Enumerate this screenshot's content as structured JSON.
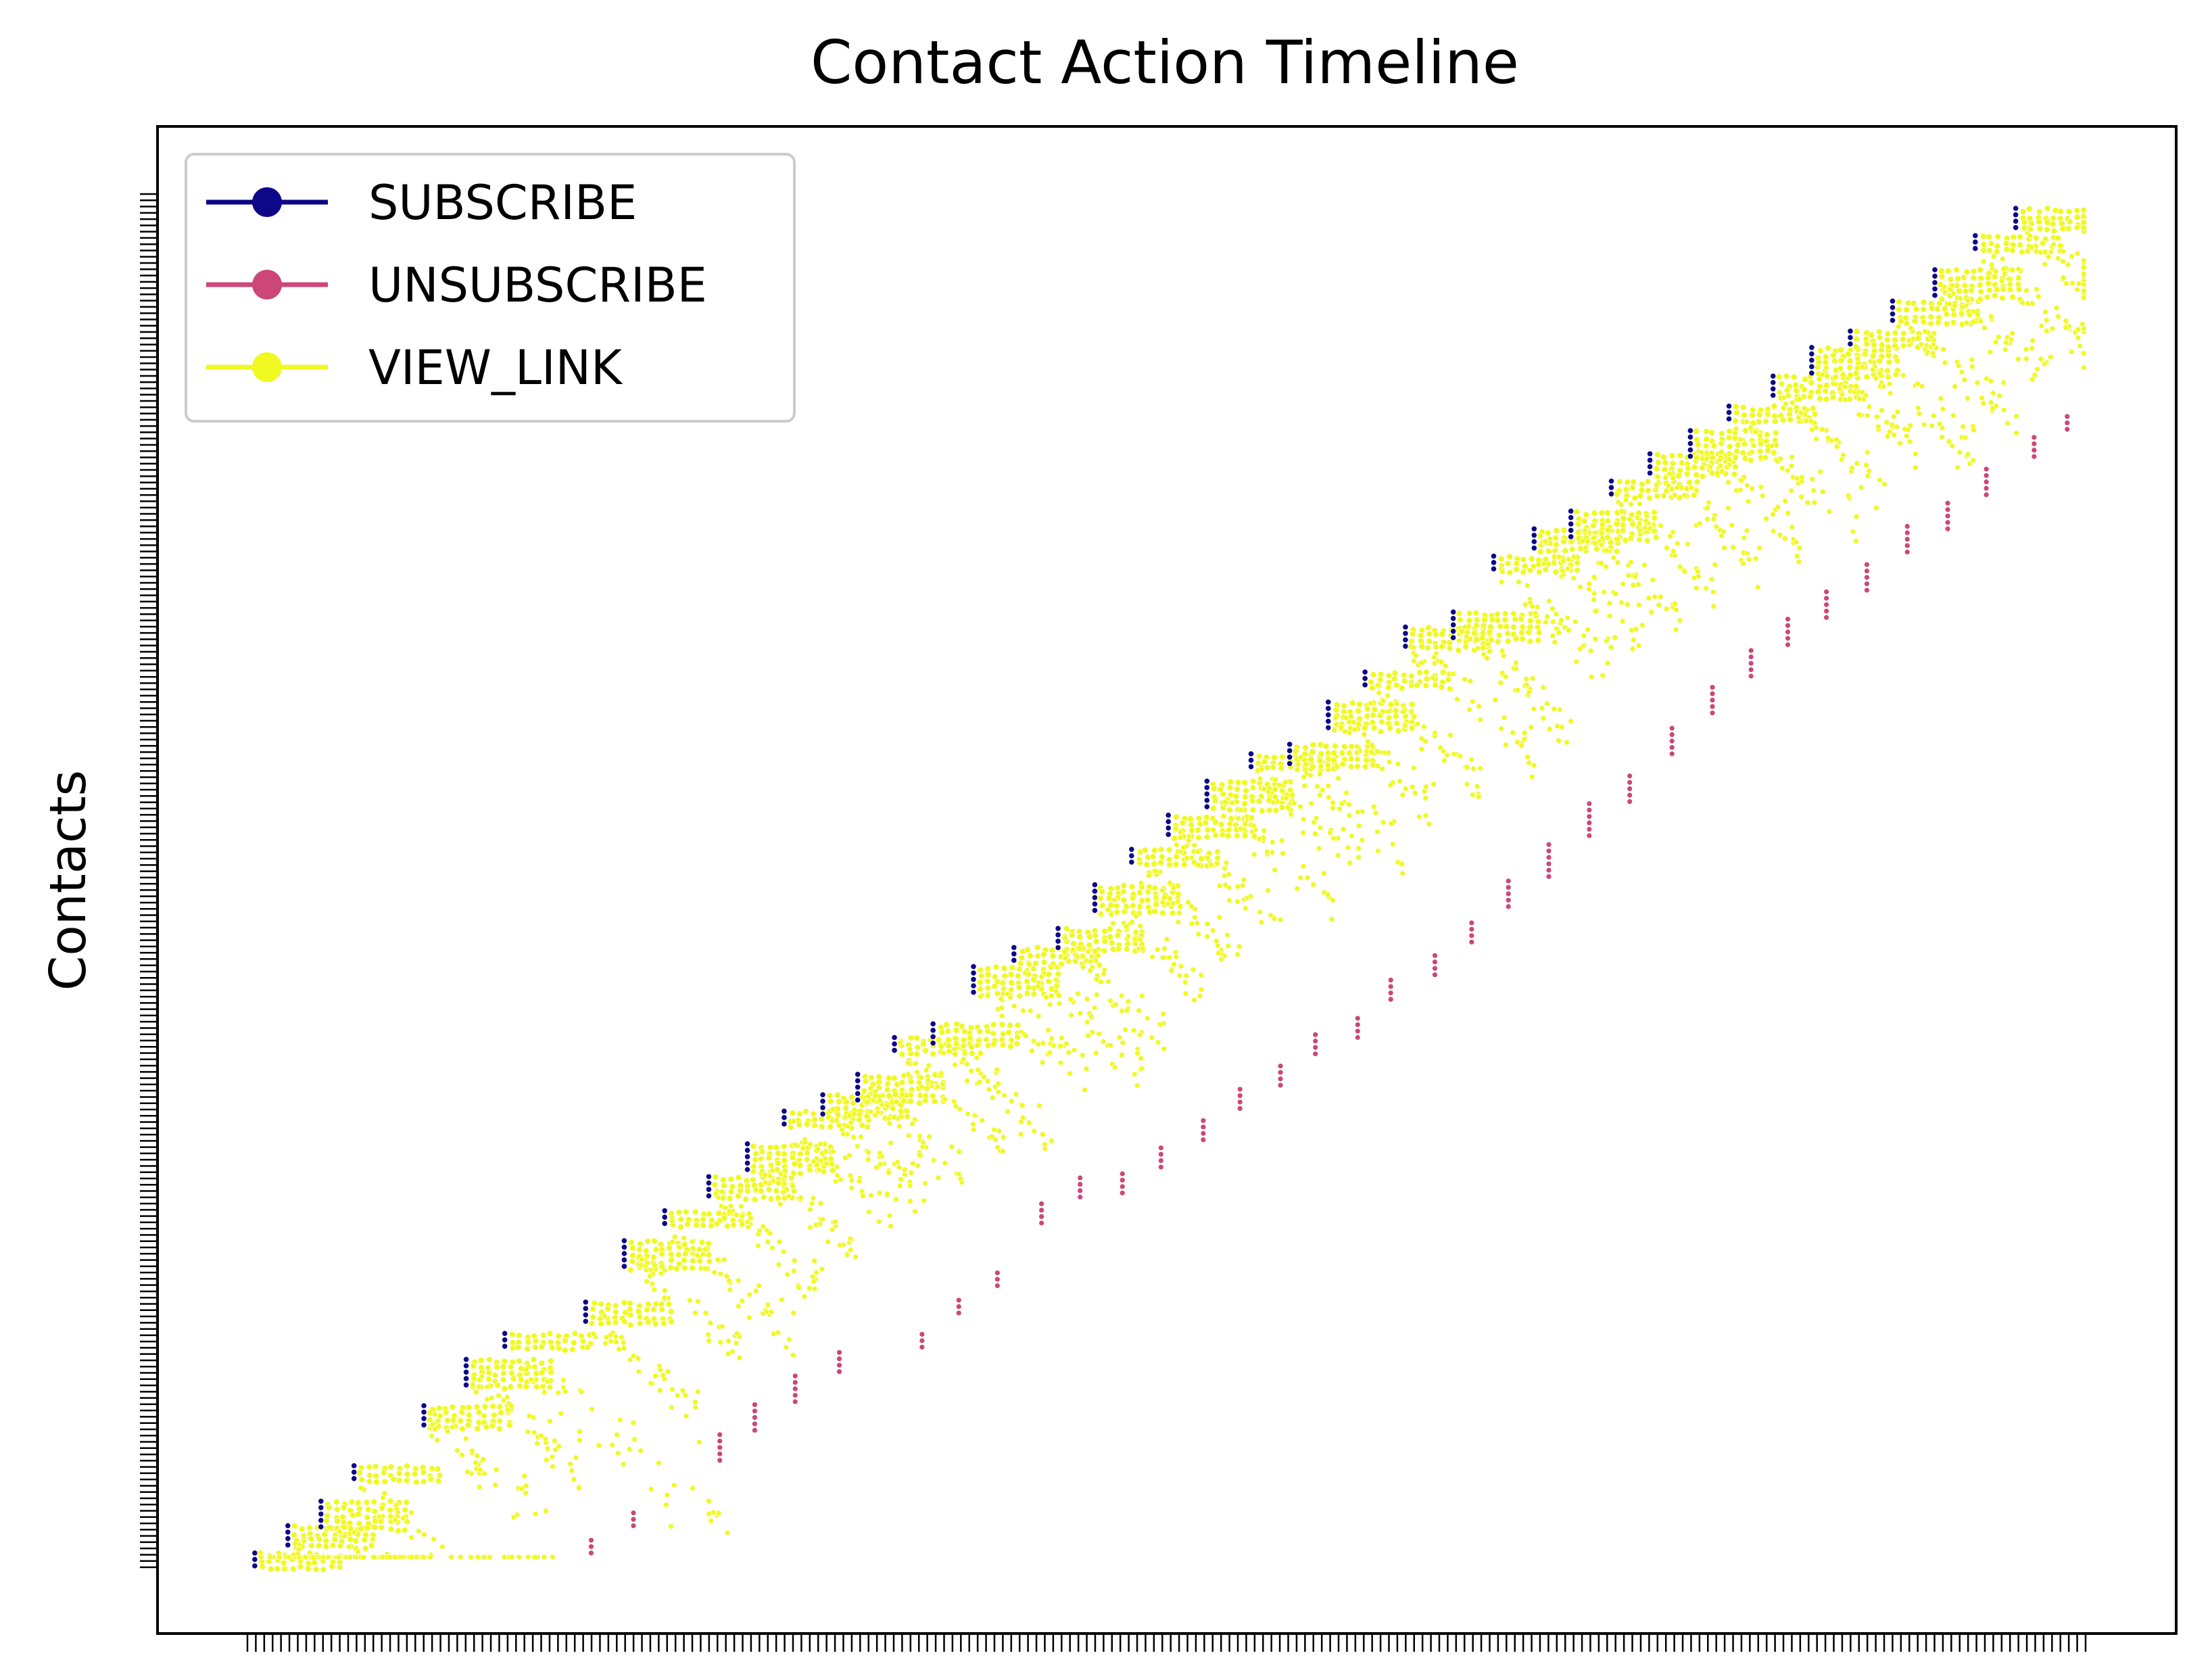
{
  "chart_data": {
    "type": "scatter",
    "title": "Contact Action Timeline",
    "xlabel": "",
    "ylabel": "Contacts",
    "grid": false,
    "legend_position": "upper-left",
    "x_tick_labels_visible": false,
    "y_tick_labels_visible": false,
    "legend": [
      {
        "label": "SUBSCRIBE",
        "color": "#0d0887"
      },
      {
        "label": "UNSUBSCRIBE",
        "color": "#cc4778"
      },
      {
        "label": "VIEW_LINK",
        "color": "#f0f921"
      }
    ],
    "x_range": [
      0,
      1
    ],
    "y_range": [
      0,
      1
    ],
    "x_tick_count": 220,
    "y_tick_count": 220,
    "subscriber_cohorts": [
      {
        "x": 0.004,
        "y_top": 0.004,
        "views": 40,
        "unsubscribe": [
          0.187,
          0.004,
          3
        ]
      },
      {
        "x": 0.022,
        "y_top": 0.024,
        "views": 40,
        "unsubscribe": null
      },
      {
        "x": 0.04,
        "y_top": 0.042,
        "views": 40,
        "unsubscribe": null
      },
      {
        "x": 0.058,
        "y_top": 0.068,
        "views": 40,
        "unsubscribe": [
          0.21,
          0.024,
          3
        ]
      },
      {
        "x": 0.096,
        "y_top": 0.112,
        "views": 40,
        "unsubscribe": null
      },
      {
        "x": 0.119,
        "y_top": 0.146,
        "views": 40,
        "unsubscribe": null
      },
      {
        "x": 0.14,
        "y_top": 0.165,
        "views": 40,
        "unsubscribe": null
      },
      {
        "x": 0.184,
        "y_top": 0.188,
        "views": 40,
        "unsubscribe": [
          0.257,
          0.072,
          5
        ]
      },
      {
        "x": 0.205,
        "y_top": 0.233,
        "views": 40,
        "unsubscribe": [
          0.276,
          0.094,
          5
        ]
      },
      {
        "x": 0.227,
        "y_top": 0.255,
        "views": 40,
        "unsubscribe": [
          0.298,
          0.115,
          5
        ]
      },
      {
        "x": 0.251,
        "y_top": 0.28,
        "views": 40,
        "unsubscribe": [
          0.322,
          0.137,
          4
        ]
      },
      {
        "x": 0.272,
        "y_top": 0.304,
        "views": 40,
        "unsubscribe": null
      },
      {
        "x": 0.292,
        "y_top": 0.328,
        "views": 40,
        "unsubscribe": [
          0.367,
          0.155,
          3
        ]
      },
      {
        "x": 0.313,
        "y_top": 0.34,
        "views": 40,
        "unsubscribe": [
          0.387,
          0.18,
          3
        ]
      },
      {
        "x": 0.332,
        "y_top": 0.355,
        "views": 40,
        "unsubscribe": [
          0.408,
          0.2,
          3
        ]
      },
      {
        "x": 0.352,
        "y_top": 0.382,
        "views": 40,
        "unsubscribe": [
          0.432,
          0.246,
          4
        ]
      },
      {
        "x": 0.373,
        "y_top": 0.392,
        "views": 40,
        "unsubscribe": [
          0.453,
          0.265,
          4
        ]
      },
      {
        "x": 0.395,
        "y_top": 0.434,
        "views": 40,
        "unsubscribe": [
          0.476,
          0.268,
          4
        ]
      },
      {
        "x": 0.417,
        "y_top": 0.448,
        "views": 40,
        "unsubscribe": [
          0.497,
          0.287,
          4
        ]
      },
      {
        "x": 0.441,
        "y_top": 0.462,
        "views": 40,
        "unsubscribe": [
          0.52,
          0.307,
          4
        ]
      },
      {
        "x": 0.461,
        "y_top": 0.494,
        "views": 40,
        "unsubscribe": [
          0.54,
          0.33,
          4
        ]
      },
      {
        "x": 0.481,
        "y_top": 0.52,
        "views": 40,
        "unsubscribe": [
          0.562,
          0.347,
          4
        ]
      },
      {
        "x": 0.501,
        "y_top": 0.545,
        "views": 40,
        "unsubscribe": [
          0.581,
          0.37,
          4
        ]
      },
      {
        "x": 0.522,
        "y_top": 0.57,
        "views": 40,
        "unsubscribe": [
          0.604,
          0.382,
          4
        ]
      },
      {
        "x": 0.546,
        "y_top": 0.59,
        "views": 40,
        "unsubscribe": [
          0.622,
          0.41,
          4
        ]
      },
      {
        "x": 0.567,
        "y_top": 0.597,
        "views": 40,
        "unsubscribe": [
          0.646,
          0.428,
          4
        ]
      },
      {
        "x": 0.588,
        "y_top": 0.628,
        "views": 40,
        "unsubscribe": [
          0.666,
          0.452,
          4
        ]
      },
      {
        "x": 0.608,
        "y_top": 0.65,
        "views": 40,
        "unsubscribe": [
          0.686,
          0.478,
          5
        ]
      },
      {
        "x": 0.63,
        "y_top": 0.683,
        "views": 40,
        "unsubscribe": [
          0.708,
          0.5,
          6
        ]
      },
      {
        "x": 0.656,
        "y_top": 0.694,
        "views": 40,
        "unsubscribe": [
          0.73,
          0.53,
          6
        ]
      },
      {
        "x": 0.678,
        "y_top": 0.735,
        "views": 40,
        "unsubscribe": [
          0.752,
          0.555,
          5
        ]
      },
      {
        "x": 0.7,
        "y_top": 0.755,
        "views": 40,
        "unsubscribe": [
          0.775,
          0.59,
          5
        ]
      },
      {
        "x": 0.72,
        "y_top": 0.768,
        "views": 40,
        "unsubscribe": [
          0.797,
          0.62,
          5
        ]
      },
      {
        "x": 0.742,
        "y_top": 0.79,
        "views": 40,
        "unsubscribe": [
          0.818,
          0.647,
          5
        ]
      },
      {
        "x": 0.763,
        "y_top": 0.81,
        "views": 40,
        "unsubscribe": [
          0.838,
          0.67,
          5
        ]
      },
      {
        "x": 0.785,
        "y_top": 0.827,
        "views": 40,
        "unsubscribe": [
          0.859,
          0.69,
          5
        ]
      },
      {
        "x": 0.806,
        "y_top": 0.845,
        "views": 40,
        "unsubscribe": [
          0.881,
          0.71,
          5
        ]
      },
      {
        "x": 0.83,
        "y_top": 0.867,
        "views": 40,
        "unsubscribe": [
          0.903,
          0.738,
          5
        ]
      },
      {
        "x": 0.851,
        "y_top": 0.888,
        "views": 40,
        "unsubscribe": [
          0.925,
          0.755,
          5
        ]
      },
      {
        "x": 0.872,
        "y_top": 0.9,
        "views": 40,
        "unsubscribe": [
          0.946,
          0.78,
          5
        ]
      },
      {
        "x": 0.895,
        "y_top": 0.922,
        "views": 40,
        "unsubscribe": null
      },
      {
        "x": 0.918,
        "y_top": 0.945,
        "views": 40,
        "unsubscribe": [
          0.972,
          0.808,
          4
        ]
      },
      {
        "x": 0.94,
        "y_top": 0.97,
        "views": 40,
        "unsubscribe": [
          0.99,
          0.828,
          3
        ]
      },
      {
        "x": 0.962,
        "y_top": 0.99,
        "views": 40,
        "unsubscribe": null
      }
    ]
  }
}
